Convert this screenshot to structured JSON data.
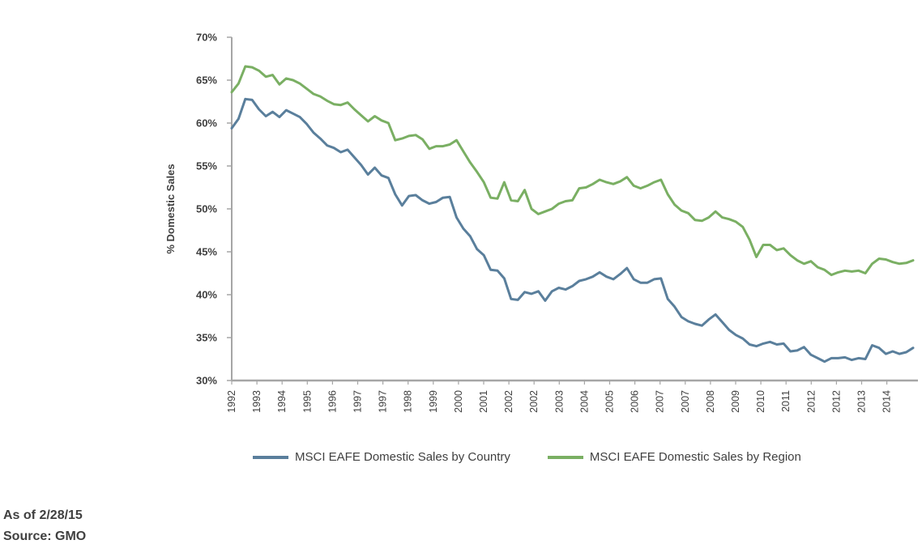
{
  "chart_data": {
    "type": "line",
    "title": "",
    "xlabel": "",
    "ylabel": "% Domestic Sales",
    "ylim": [
      30,
      70
    ],
    "yticks": [
      "30%",
      "35%",
      "40%",
      "45%",
      "50%",
      "55%",
      "60%",
      "65%",
      "70%"
    ],
    "ytick_values": [
      30,
      35,
      40,
      45,
      50,
      55,
      60,
      65,
      70
    ],
    "x_tick_labels": [
      "1992",
      "1993",
      "1994",
      "1995",
      "1996",
      "1997",
      "1997",
      "1998",
      "1999",
      "2000",
      "2001",
      "2002",
      "2002",
      "2003",
      "2004",
      "2005",
      "2006",
      "2007",
      "2007",
      "2008",
      "2009",
      "2010",
      "2011",
      "2012",
      "2012",
      "2013",
      "2014"
    ],
    "grid": false,
    "legend_position": "bottom",
    "series": [
      {
        "name": "MSCI EAFE Domestic Sales by Country",
        "color": "#5a7f9c",
        "values": [
          59.4,
          60.5,
          62.8,
          62.7,
          61.6,
          60.8,
          61.3,
          60.7,
          61.5,
          61.1,
          60.7,
          59.9,
          58.9,
          58.2,
          57.4,
          57.1,
          56.6,
          56.9,
          56.0,
          55.1,
          54.0,
          54.8,
          53.9,
          53.6,
          51.7,
          50.4,
          51.5,
          51.6,
          51.0,
          50.6,
          50.8,
          51.3,
          51.4,
          49.0,
          47.7,
          46.8,
          45.3,
          44.6,
          42.9,
          42.8,
          41.9,
          39.5,
          39.4,
          40.3,
          40.1,
          40.4,
          39.3,
          40.4,
          40.8,
          40.6,
          41.0,
          41.6,
          41.8,
          42.1,
          42.6,
          42.1,
          41.8,
          42.4,
          43.1,
          41.8,
          41.4,
          41.4,
          41.8,
          41.9,
          39.5,
          38.6,
          37.4,
          36.9,
          36.6,
          36.4,
          37.1,
          37.7,
          36.8,
          35.9,
          35.3,
          34.9,
          34.2,
          34.0,
          34.3,
          34.5,
          34.2,
          34.3,
          33.4,
          33.5,
          33.9,
          33.0,
          32.6,
          32.2,
          32.6,
          32.6,
          32.7,
          32.4,
          32.6,
          32.5,
          34.1,
          33.8,
          33.1,
          33.4,
          33.1,
          33.3,
          33.8
        ]
      },
      {
        "name": "MSCI EAFE Domestic Sales by Region",
        "color": "#7aaf63",
        "values": [
          63.6,
          64.6,
          66.6,
          66.5,
          66.1,
          65.4,
          65.6,
          64.5,
          65.2,
          65.0,
          64.6,
          64.0,
          63.4,
          63.1,
          62.6,
          62.2,
          62.1,
          62.4,
          61.6,
          60.9,
          60.2,
          60.8,
          60.3,
          60.0,
          58.0,
          58.2,
          58.5,
          58.6,
          58.1,
          57.0,
          57.3,
          57.3,
          57.5,
          58.0,
          56.7,
          55.4,
          54.3,
          53.1,
          51.3,
          51.2,
          53.1,
          51.0,
          50.9,
          52.2,
          50.0,
          49.4,
          49.7,
          50.0,
          50.6,
          50.9,
          51.0,
          52.4,
          52.5,
          52.9,
          53.4,
          53.1,
          52.9,
          53.2,
          53.7,
          52.7,
          52.4,
          52.7,
          53.1,
          53.4,
          51.7,
          50.5,
          49.8,
          49.5,
          48.7,
          48.6,
          49.0,
          49.7,
          49.0,
          48.8,
          48.5,
          47.9,
          46.4,
          44.4,
          45.8,
          45.8,
          45.2,
          45.4,
          44.6,
          44.0,
          43.6,
          43.9,
          43.2,
          42.9,
          42.3,
          42.6,
          42.8,
          42.7,
          42.8,
          42.5,
          43.6,
          44.2,
          44.1,
          43.8,
          43.6,
          43.7,
          44.0
        ]
      }
    ]
  },
  "legend": {
    "country_label": "MSCI EAFE Domestic Sales by Country",
    "region_label": "MSCI EAFE Domestic Sales by Region"
  },
  "footer": {
    "as_of": "As of 2/28/15",
    "source": "Source: GMO"
  }
}
